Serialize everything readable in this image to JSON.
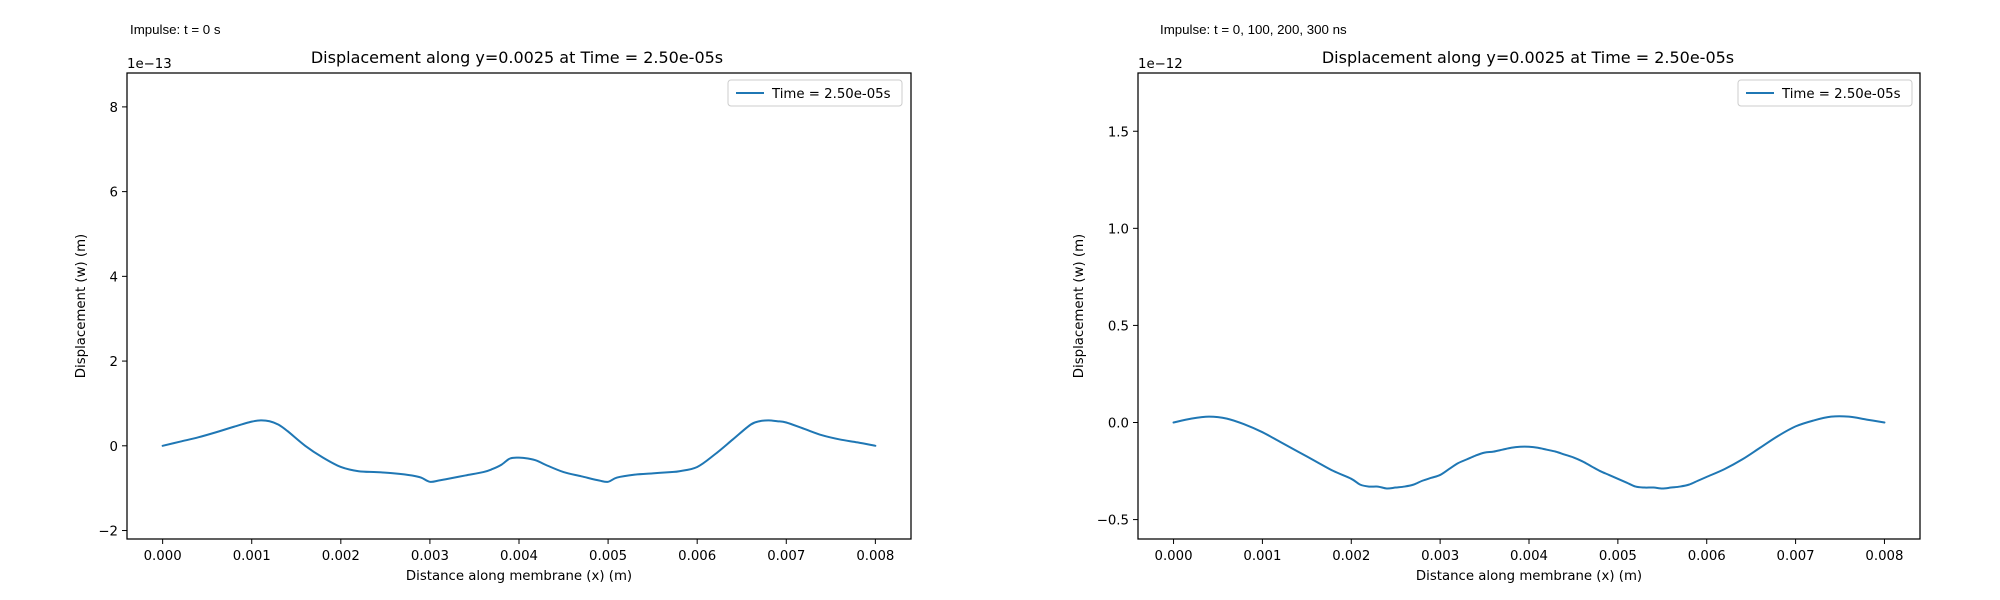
{
  "series_color": "#1f77b4",
  "chart_data": [
    {
      "type": "line",
      "note": "Impulse: t = 0 s",
      "title": "Displacement along y=0.0025 at Time = 2.50e-05s",
      "xlabel": "Distance along membrane (x) (m)",
      "ylabel": "Displacement (w) (m)",
      "y_offset_label": "1e−13",
      "xlim": [
        -0.0004,
        0.0084
      ],
      "ylim": [
        -2.2,
        8.8
      ],
      "xticks": [
        0.0,
        0.001,
        0.002,
        0.003,
        0.004,
        0.005,
        0.006,
        0.007,
        0.008
      ],
      "xtick_labels": [
        "0.000",
        "0.001",
        "0.002",
        "0.003",
        "0.004",
        "0.005",
        "0.006",
        "0.007",
        "0.008"
      ],
      "yticks": [
        -2,
        0,
        2,
        4,
        6,
        8
      ],
      "ytick_labels": [
        "−2",
        "0",
        "2",
        "4",
        "6",
        "8"
      ],
      "legend": {
        "entries": [
          "Time = 2.50e-05s"
        ],
        "position": "upper right"
      },
      "series": [
        {
          "name": "Time = 2.50e-05s",
          "x": [
            0.0,
            0.0002,
            0.0004,
            0.0006,
            0.0008,
            0.001,
            0.0011,
            0.0012,
            0.0013,
            0.0014,
            0.0016,
            0.0018,
            0.002,
            0.0022,
            0.0024,
            0.0026,
            0.0028,
            0.0029,
            0.003,
            0.0031,
            0.0032,
            0.0034,
            0.0036,
            0.0037,
            0.0038,
            0.0039,
            0.004,
            0.0041,
            0.0042,
            0.0043,
            0.0045,
            0.0047,
            0.0049,
            0.005,
            0.0051,
            0.0053,
            0.0055,
            0.0057,
            0.0058,
            0.006,
            0.0062,
            0.0064,
            0.0066,
            0.0067,
            0.0068,
            0.0069,
            0.007,
            0.0072,
            0.0074,
            0.0076,
            0.0078,
            0.008
          ],
          "y": [
            0.0,
            0.1,
            0.2,
            0.32,
            0.45,
            0.57,
            0.6,
            0.58,
            0.5,
            0.35,
            0.0,
            -0.28,
            -0.5,
            -0.6,
            -0.62,
            -0.65,
            -0.7,
            -0.75,
            -0.85,
            -0.82,
            -0.78,
            -0.7,
            -0.62,
            -0.55,
            -0.45,
            -0.3,
            -0.28,
            -0.3,
            -0.35,
            -0.45,
            -0.62,
            -0.72,
            -0.82,
            -0.85,
            -0.75,
            -0.68,
            -0.65,
            -0.62,
            -0.6,
            -0.5,
            -0.2,
            0.15,
            0.5,
            0.58,
            0.6,
            0.58,
            0.55,
            0.4,
            0.25,
            0.15,
            0.08,
            0.0
          ]
        }
      ]
    },
    {
      "type": "line",
      "note": "Impulse: t = 0, 100, 200, 300 ns",
      "title": "Displacement along y=0.0025 at Time = 2.50e-05s",
      "xlabel": "Distance along membrane (x) (m)",
      "ylabel": "Displacement (w) (m)",
      "y_offset_label": "1e−12",
      "xlim": [
        -0.0004,
        0.0084
      ],
      "ylim": [
        -0.6,
        1.8
      ],
      "xticks": [
        0.0,
        0.001,
        0.002,
        0.003,
        0.004,
        0.005,
        0.006,
        0.007,
        0.008
      ],
      "xtick_labels": [
        "0.000",
        "0.001",
        "0.002",
        "0.003",
        "0.004",
        "0.005",
        "0.006",
        "0.007",
        "0.008"
      ],
      "yticks": [
        -0.5,
        0.0,
        0.5,
        1.0,
        1.5
      ],
      "ytick_labels": [
        "−0.5",
        "0.0",
        "0.5",
        "1.0",
        "1.5"
      ],
      "legend": {
        "entries": [
          "Time = 2.50e-05s"
        ],
        "position": "upper right"
      },
      "series": [
        {
          "name": "Time = 2.50e-05s",
          "x": [
            0.0,
            0.0002,
            0.0004,
            0.0006,
            0.0008,
            0.001,
            0.0012,
            0.0014,
            0.0016,
            0.0018,
            0.002,
            0.0021,
            0.0022,
            0.0023,
            0.0024,
            0.0025,
            0.0026,
            0.0027,
            0.0028,
            0.0029,
            0.003,
            0.0031,
            0.0032,
            0.0033,
            0.0034,
            0.0035,
            0.0036,
            0.0037,
            0.0038,
            0.0039,
            0.004,
            0.0041,
            0.0042,
            0.0043,
            0.0044,
            0.0045,
            0.0046,
            0.0047,
            0.0048,
            0.0049,
            0.005,
            0.0051,
            0.0052,
            0.0053,
            0.0054,
            0.0055,
            0.0056,
            0.0057,
            0.0058,
            0.0059,
            0.006,
            0.0062,
            0.0064,
            0.0066,
            0.0068,
            0.007,
            0.0072,
            0.0074,
            0.0076,
            0.0078,
            0.008
          ],
          "y": [
            0.0,
            0.02,
            0.03,
            0.02,
            -0.01,
            -0.05,
            -0.1,
            -0.15,
            -0.2,
            -0.25,
            -0.29,
            -0.32,
            -0.33,
            -0.33,
            -0.34,
            -0.335,
            -0.33,
            -0.32,
            -0.3,
            -0.285,
            -0.27,
            -0.24,
            -0.21,
            -0.19,
            -0.17,
            -0.155,
            -0.15,
            -0.14,
            -0.13,
            -0.125,
            -0.125,
            -0.13,
            -0.14,
            -0.15,
            -0.165,
            -0.18,
            -0.2,
            -0.225,
            -0.25,
            -0.27,
            -0.29,
            -0.31,
            -0.33,
            -0.335,
            -0.335,
            -0.34,
            -0.335,
            -0.33,
            -0.32,
            -0.3,
            -0.28,
            -0.24,
            -0.19,
            -0.13,
            -0.07,
            -0.02,
            0.01,
            0.03,
            0.03,
            0.015,
            0.0
          ]
        }
      ]
    }
  ]
}
